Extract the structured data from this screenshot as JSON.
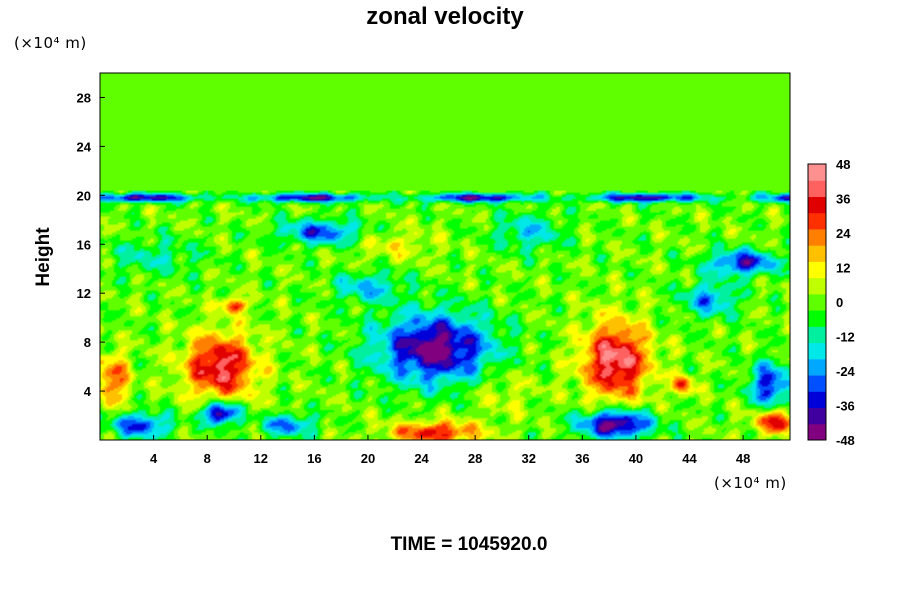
{
  "chart_data": {
    "type": "heatmap",
    "title": "zonal velocity",
    "xlabel": "",
    "ylabel": "Height",
    "x_unit": "(×10⁴ m)",
    "y_unit": "(×10⁴ m)",
    "xlim": [
      0,
      51.5
    ],
    "ylim": [
      0,
      30
    ],
    "x_ticks": [
      "4",
      "8",
      "12",
      "16",
      "20",
      "24",
      "28",
      "32",
      "36",
      "40",
      "44",
      "48"
    ],
    "y_ticks": [
      "4",
      "8",
      "12",
      "16",
      "20",
      "24",
      "28"
    ],
    "colorbar": {
      "range": [
        -48,
        48
      ],
      "tick_labels": [
        "48",
        "36",
        "24",
        "12",
        "0",
        "-12",
        "-24",
        "-36",
        "-48"
      ],
      "colors": [
        "#800080",
        "#4000a0",
        "#0000d8",
        "#0050ff",
        "#00a8ff",
        "#00e8e8",
        "#00f0a0",
        "#00ff00",
        "#60ff00",
        "#c0ff00",
        "#ffff00",
        "#ffc000",
        "#ff8000",
        "#ff3000",
        "#e00000",
        "#ff6060",
        "#ff9090"
      ]
    },
    "background_value": 0,
    "features": [
      {
        "kind": "jet",
        "x": 25.0,
        "y": 7.5,
        "sx": 4.2,
        "sy": 2.8,
        "value": -46
      },
      {
        "kind": "jet",
        "x": 9.0,
        "y": 6.0,
        "sx": 2.6,
        "sy": 2.6,
        "value": 40
      },
      {
        "kind": "jet",
        "x": 38.5,
        "y": 6.5,
        "sx": 2.4,
        "sy": 3.0,
        "value": 44
      },
      {
        "kind": "jet",
        "x": 9.0,
        "y": 2.2,
        "sx": 1.3,
        "sy": 0.9,
        "value": -48
      },
      {
        "kind": "jet",
        "x": 38.5,
        "y": 1.3,
        "sx": 2.6,
        "sy": 1.1,
        "value": -48
      },
      {
        "kind": "jet",
        "x": 25.0,
        "y": 0.6,
        "sx": 3.2,
        "sy": 0.9,
        "value": 34
      },
      {
        "kind": "jet",
        "x": 3.0,
        "y": 1.2,
        "sx": 2.2,
        "sy": 1.0,
        "value": -32
      },
      {
        "kind": "jet",
        "x": 14.0,
        "y": 1.2,
        "sx": 2.0,
        "sy": 0.9,
        "value": -26
      },
      {
        "kind": "jet",
        "x": 50.0,
        "y": 4.5,
        "sx": 1.5,
        "sy": 1.8,
        "value": -34
      },
      {
        "kind": "jet",
        "x": 50.5,
        "y": 1.5,
        "sx": 1.6,
        "sy": 1.0,
        "value": 34
      },
      {
        "kind": "jet",
        "x": 1.0,
        "y": 5.0,
        "sx": 1.2,
        "sy": 2.0,
        "value": 26
      },
      {
        "kind": "jet",
        "x": 45.5,
        "y": 11.5,
        "sx": 2.0,
        "sy": 1.4,
        "value": -24
      },
      {
        "kind": "jet",
        "x": 48.0,
        "y": 14.5,
        "sx": 2.5,
        "sy": 1.0,
        "value": -36
      },
      {
        "kind": "jet",
        "x": 16.5,
        "y": 17.0,
        "sx": 3.0,
        "sy": 1.0,
        "value": -30
      },
      {
        "kind": "jet",
        "x": 20.0,
        "y": 12.5,
        "sx": 2.5,
        "sy": 1.2,
        "value": -20
      },
      {
        "kind": "jet",
        "x": 4.0,
        "y": 15.0,
        "sx": 3.5,
        "sy": 1.5,
        "value": -12
      },
      {
        "kind": "jet",
        "x": 32.0,
        "y": 17.0,
        "sx": 2.5,
        "sy": 1.5,
        "value": -18
      },
      {
        "kind": "jet",
        "x": 10.0,
        "y": 11.0,
        "sx": 1.0,
        "sy": 0.6,
        "value": 30
      },
      {
        "kind": "jet",
        "x": 43.5,
        "y": 4.5,
        "sx": 0.8,
        "sy": 0.8,
        "value": 28
      },
      {
        "kind": "jet",
        "x": 30.0,
        "y": 4.0,
        "sx": 2.5,
        "sy": 2.0,
        "value": 8
      },
      {
        "kind": "jet",
        "x": 22.0,
        "y": 16.0,
        "sx": 3.0,
        "sy": 1.2,
        "value": 10
      }
    ],
    "tropopause_band": {
      "height": 20,
      "value": -40
    }
  },
  "footer": {
    "time_label": "TIME = 1045920.0"
  }
}
